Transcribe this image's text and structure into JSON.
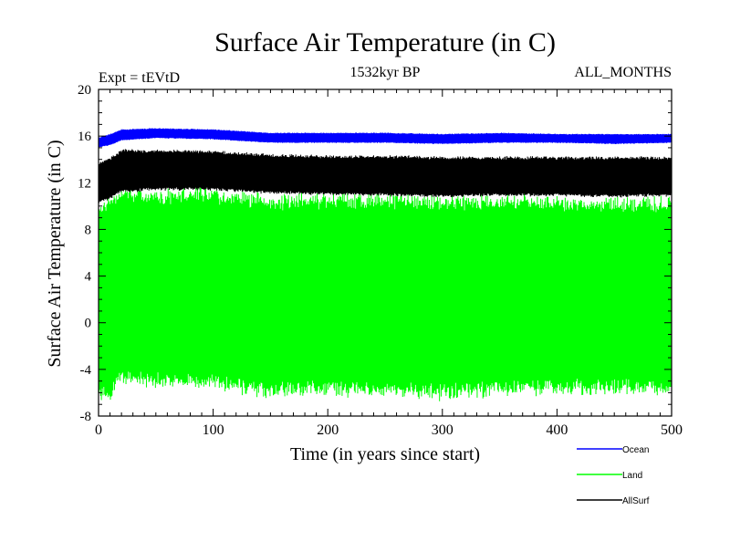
{
  "chart_data": {
    "type": "line",
    "title": "Surface Air Temperature (in C)",
    "subtitle_left": "Expt = tEVtD",
    "subtitle_center": "1532kyr BP",
    "subtitle_right": "ALL_MONTHS",
    "xlabel": "Time (in years since start)",
    "ylabel": "Surface Air Temperature (in C)",
    "xlim": [
      0,
      500
    ],
    "ylim": [
      -8,
      20
    ],
    "xticks": [
      0,
      100,
      200,
      300,
      400,
      500
    ],
    "yticks": [
      -8,
      -4,
      0,
      4,
      8,
      12,
      16,
      20
    ],
    "series": [
      {
        "name": "Land",
        "color": "#00ff00",
        "approx_envelope": {
          "x": [
            0,
            10,
            20,
            50,
            100,
            150,
            200,
            250,
            300,
            350,
            400,
            450,
            500
          ],
          "max": [
            10.5,
            11.0,
            11.8,
            11.6,
            11.8,
            11.2,
            11.3,
            11.3,
            11.1,
            11.2,
            11.1,
            11.0,
            11.0
          ],
          "min": [
            -7.0,
            -6.8,
            -5.5,
            -5.8,
            -5.9,
            -6.6,
            -6.5,
            -6.6,
            -6.8,
            -6.5,
            -6.4,
            -6.3,
            -6.5
          ]
        }
      },
      {
        "name": "AllSurf",
        "color": "#000000",
        "approx_envelope": {
          "x": [
            0,
            10,
            20,
            50,
            100,
            150,
            200,
            250,
            300,
            350,
            400,
            450,
            500
          ],
          "max": [
            13.8,
            14.2,
            14.9,
            14.9,
            14.8,
            14.5,
            14.4,
            14.4,
            14.3,
            14.3,
            14.3,
            14.3,
            14.3
          ],
          "min": [
            10.2,
            10.5,
            11.1,
            11.3,
            11.3,
            11.0,
            10.9,
            10.8,
            10.7,
            10.8,
            10.8,
            10.7,
            10.8
          ]
        }
      },
      {
        "name": "Ocean",
        "color": "#0000ff",
        "approx_envelope": {
          "x": [
            0,
            10,
            20,
            50,
            100,
            150,
            200,
            250,
            300,
            350,
            400,
            450,
            500
          ],
          "max": [
            15.9,
            16.2,
            16.6,
            16.7,
            16.6,
            16.3,
            16.3,
            16.3,
            16.2,
            16.3,
            16.2,
            16.2,
            16.2
          ],
          "min": [
            15.0,
            15.2,
            15.6,
            15.8,
            15.7,
            15.4,
            15.4,
            15.4,
            15.3,
            15.4,
            15.4,
            15.3,
            15.4
          ]
        }
      }
    ],
    "legend": [
      {
        "name": "Ocean",
        "color": "#0000ff"
      },
      {
        "name": "Land",
        "color": "#00ff00"
      },
      {
        "name": "AllSurf",
        "color": "#000000"
      }
    ],
    "legend_position": "bottom-right"
  }
}
